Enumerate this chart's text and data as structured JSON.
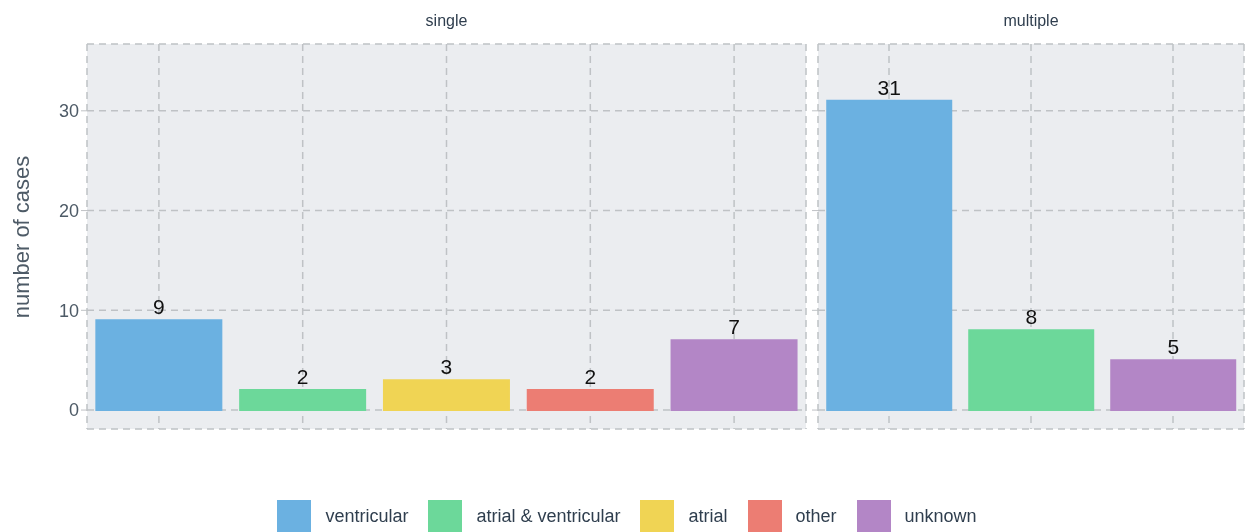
{
  "chart_data": [
    {
      "type": "bar",
      "title": "single",
      "ylabel": "number of cases",
      "categories": [
        null,
        null,
        null,
        null,
        null
      ],
      "stacked": true,
      "data_labels": true,
      "grid": true,
      "legend": "bottom",
      "ylim": [
        -1.9,
        36.7
      ],
      "yticks": [
        0,
        10,
        20,
        30
      ],
      "tick_labels": "y",
      "series": [
        {
          "name": "ventricular",
          "color": "#6bb1e1",
          "values": [
            9,
            null,
            null,
            null,
            null
          ]
        },
        {
          "name": "atrial & ventricular",
          "color": "#6cd89a",
          "values": [
            null,
            2,
            null,
            null,
            null
          ]
        },
        {
          "name": "atrial",
          "color": "#f0d454",
          "values": [
            null,
            null,
            3,
            null,
            null
          ]
        },
        {
          "name": "other",
          "color": "#ec7d73",
          "values": [
            null,
            null,
            null,
            2,
            null
          ]
        },
        {
          "name": "unknown",
          "color": "#b386c6",
          "values": [
            null,
            null,
            null,
            null,
            7
          ]
        }
      ]
    },
    {
      "type": "bar",
      "title": "multiple",
      "categories": [
        null,
        null,
        null
      ],
      "stacked": true,
      "data_labels": true,
      "grid": true,
      "ylim": [
        -1.9,
        36.7
      ],
      "yticks": [
        0,
        10,
        20,
        30
      ],
      "tick_labels": false,
      "series": [
        {
          "color": "#6bb1e1",
          "values": [
            31,
            null,
            null
          ]
        },
        {
          "color": "#6cd89a",
          "values": [
            null,
            8,
            null
          ]
        },
        {
          "color": "#b386c6",
          "values": [
            null,
            null,
            5
          ]
        }
      ]
    }
  ]
}
